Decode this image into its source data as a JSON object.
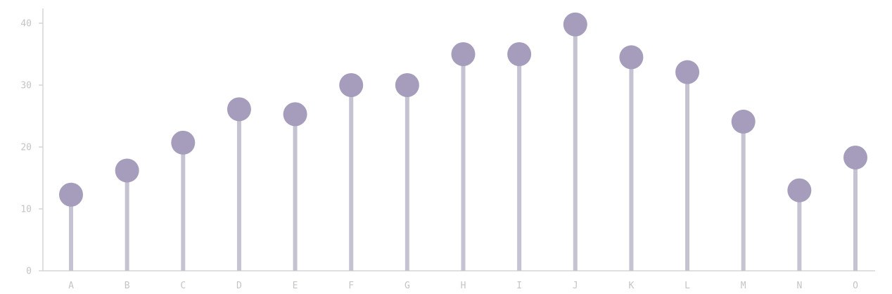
{
  "chart_data": {
    "type": "lollipop",
    "title": "",
    "xlabel": "",
    "ylabel": "",
    "categories": [
      "A",
      "B",
      "C",
      "D",
      "E",
      "F",
      "G",
      "H",
      "I",
      "J",
      "K",
      "L",
      "M",
      "N",
      "O"
    ],
    "values": [
      12.3,
      16.2,
      20.7,
      26.1,
      25.3,
      30.0,
      30.0,
      35.0,
      35.0,
      39.8,
      34.5,
      32.1,
      24.1,
      13.0,
      18.3
    ],
    "ylim": [
      0,
      42
    ],
    "yticks": [
      0,
      10,
      20,
      30,
      40
    ],
    "grid": false,
    "legend": "none"
  },
  "colors": {
    "stem": "#c5c2d1",
    "dot": "#a59dbb",
    "axis": "#d6d6d6",
    "tick_text": "#c4c4c4"
  }
}
